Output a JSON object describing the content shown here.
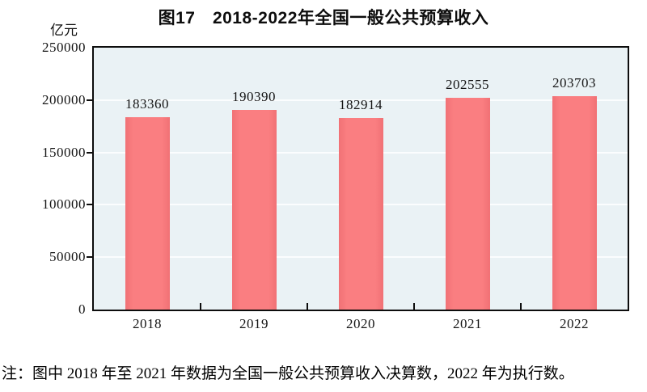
{
  "note": "注：图中 2018 年至 2021 年数据为全国一般公共预算收入决算数，2022 年为执行数。",
  "chart_data": {
    "type": "bar",
    "title": "图17　2018-2022年全国一般公共预算收入",
    "unit": "亿元",
    "categories": [
      "2018",
      "2019",
      "2020",
      "2021",
      "2022"
    ],
    "values": [
      183360,
      190390,
      182914,
      202555,
      203703
    ],
    "ylim": [
      0,
      250000
    ],
    "yticks": [
      0,
      50000,
      100000,
      150000,
      200000,
      250000
    ],
    "ytick_interval": 50000,
    "xlabel": "",
    "ylabel": "亿元",
    "legend": "none",
    "grid": "horizontal",
    "bar_color": "#fa7e81",
    "bar_edge_color": "#f17175",
    "plot_bg": "#eaf2f5",
    "grid_color": "#fbfdfe",
    "axis_color": "#0d0d0d"
  }
}
